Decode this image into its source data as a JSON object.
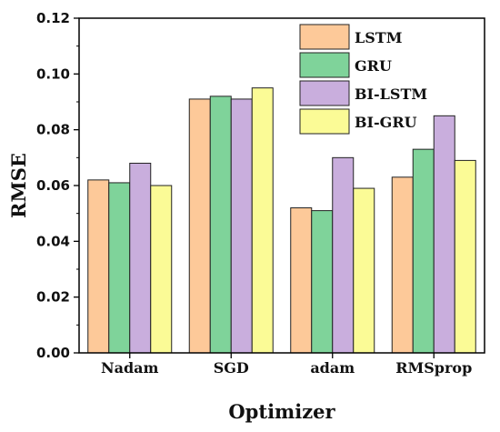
{
  "chart_data": {
    "type": "bar",
    "title": "",
    "xlabel": "Optimizer",
    "ylabel": "RMSE",
    "categories": [
      "Nadam",
      "SGD",
      "adam",
      "RMSprop"
    ],
    "ylim": [
      0,
      0.12
    ],
    "yticks": [
      "0.00",
      "0.02",
      "0.04",
      "0.06",
      "0.08",
      "0.10",
      "0.12"
    ],
    "grid": false,
    "legend_position": "top-right",
    "series": [
      {
        "name": "LSTM",
        "color": "#FDC999",
        "values": [
          0.062,
          0.091,
          0.052,
          0.063
        ]
      },
      {
        "name": "GRU",
        "color": "#7FD39A",
        "values": [
          0.061,
          0.092,
          0.051,
          0.073
        ]
      },
      {
        "name": "BI-LSTM",
        "color": "#C9AEDD",
        "values": [
          0.068,
          0.091,
          0.07,
          0.085
        ]
      },
      {
        "name": "BI-GRU",
        "color": "#FBFB96",
        "values": [
          0.06,
          0.095,
          0.059,
          0.069
        ]
      }
    ]
  }
}
